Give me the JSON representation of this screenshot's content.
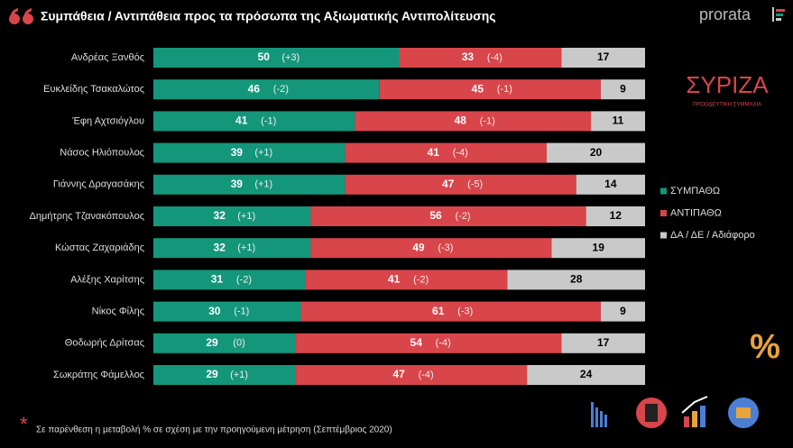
{
  "chart_data": {
    "type": "stacked-bar-horizontal",
    "title": "Συμπάθεια / Αντιπάθεια προς τα πρόσωπα της Αξιωματικής Αντιπολίτευσης",
    "source": "prorata",
    "party_logo": "ΣΥΡΙΖΑ",
    "party_subtitle": "ΠΡΟΟΔΕΥΤΙΚΗ ΣΥΜΜΑΧΙΑ",
    "badge": "%",
    "footnote_mark": "*",
    "footnote": "Σε παρένθεση η μεταβολή % σε σχέση με την προηγούμενη μέτρηση (Σεπτέμβριος 2020)",
    "categories": [
      "Ανδρέας Ξανθός",
      "Ευκλείδης Τσακαλώτος",
      "Έφη Αχτσιόγλου",
      "Νάσος Ηλιόπουλος",
      "Γιάννης Δραγασάκης",
      "Δημήτρης Τζανακόπουλος",
      "Κώστας Ζαχαριάδης",
      "Αλέξης Χαρίτσης",
      "Νίκος Φίλης",
      "Θοδωρής Δρίτσας",
      "Σωκράτης Φάμελλος"
    ],
    "series": [
      {
        "name": "ΣΥΜΠΑΘΩ",
        "color": "#14967b",
        "values": [
          50,
          46,
          41,
          39,
          39,
          32,
          32,
          31,
          30,
          29,
          29
        ],
        "change_labels": [
          "(+3)",
          "(-2)",
          "(-1)",
          "(+1)",
          "(+1)",
          "(+1)",
          "(+1)",
          "(-2)",
          "(-1)",
          "(0)",
          "(+1)"
        ]
      },
      {
        "name": "ΑΝΤΙΠΑΘΩ",
        "color": "#d8454a",
        "values": [
          33,
          45,
          48,
          41,
          47,
          56,
          49,
          41,
          61,
          54,
          47
        ],
        "change_labels": [
          "(-4)",
          "(-1)",
          "(-1)",
          "(-4)",
          "(-5)",
          "(-2)",
          "(-3)",
          "(-2)",
          "(-3)",
          "(-4)",
          "(-4)"
        ]
      },
      {
        "name": "ΔΑ / ΔΕ / Αδιάφορο",
        "color": "#c9c9c9",
        "values": [
          17,
          9,
          11,
          20,
          14,
          12,
          19,
          28,
          9,
          17,
          24
        ]
      }
    ],
    "xlim": [
      0,
      100
    ]
  }
}
